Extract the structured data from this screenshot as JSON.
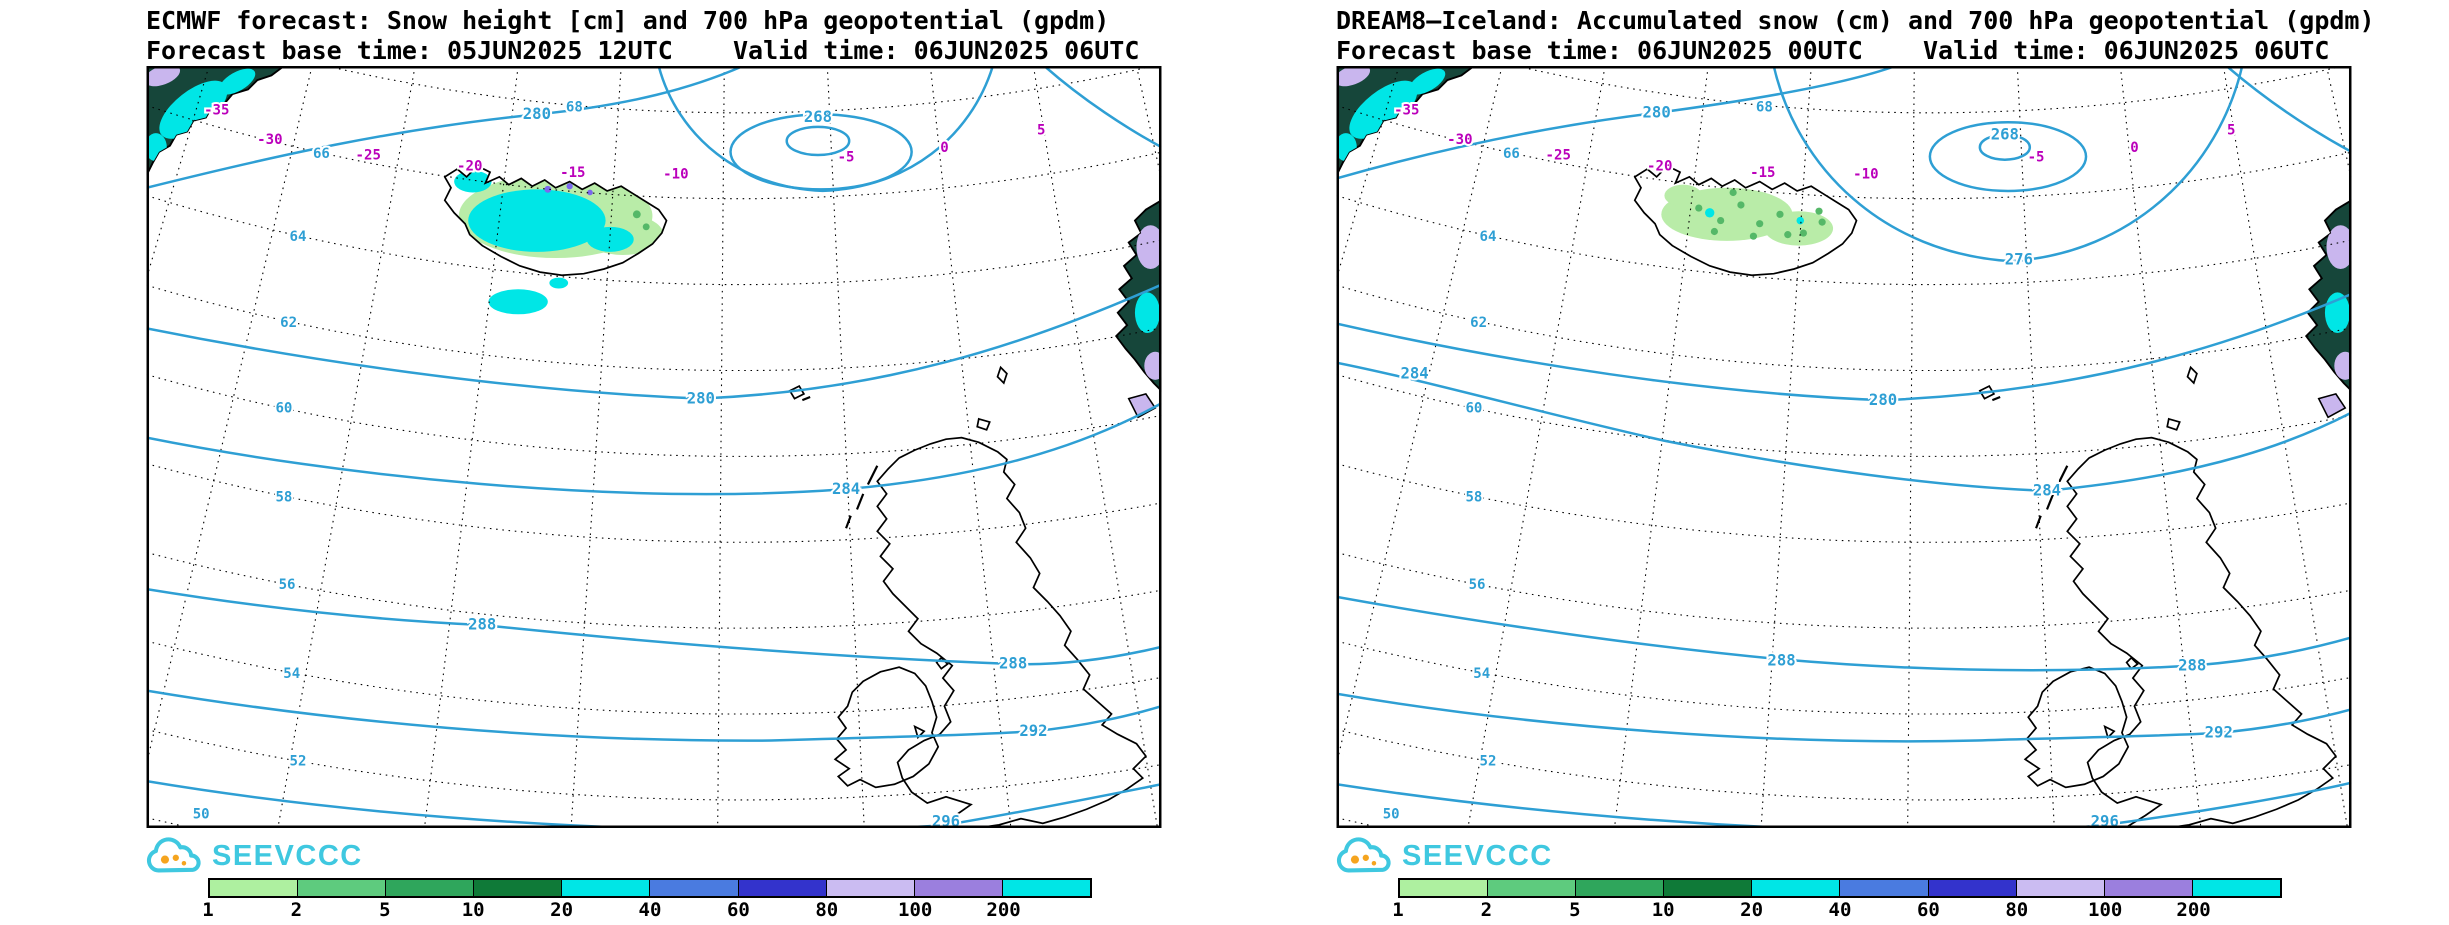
{
  "panels": [
    {
      "id": "ecmwf",
      "title": "ECMWF forecast: Snow height [cm] and 700 hPa geopotential (gpdm)",
      "base_time_line": "Forecast base time: 05JUN2025 12UTC    Valid time: 06JUN2025 06UTC",
      "contour_values": [
        "268",
        "280",
        "280",
        "284",
        "288",
        "288",
        "292",
        "296"
      ]
    },
    {
      "id": "dream8",
      "title": "DREAM8–Iceland: Accumulated snow (cm) and 700 hPa geopotential (gpdm)",
      "base_time_line": "Forecast base time: 06JUN2025 00UTC    Valid time: 06JUN2025 06UTC",
      "contour_values": [
        "268",
        "276",
        "280",
        "280",
        "284",
        "284",
        "288",
        "288",
        "292",
        "296"
      ]
    }
  ],
  "map_labels": {
    "latitudes": [
      "68",
      "66",
      "64",
      "62",
      "60",
      "58",
      "56",
      "54",
      "52",
      "50"
    ],
    "longitudes": [
      "-35",
      "-30",
      "-25",
      "-20",
      "-15",
      "-10",
      "-5",
      "0",
      "5"
    ]
  },
  "logo": {
    "text": "SEEVCCC"
  },
  "colorbar": {
    "ticks": [
      "1",
      "2",
      "5",
      "10",
      "20",
      "40",
      "60",
      "80",
      "100",
      "200"
    ],
    "colors": [
      "#AEF0A0",
      "#5ECB7E",
      "#2FA65C",
      "#0F7A38",
      "#00E6E6",
      "#4A7BE0",
      "#3333CC",
      "#CBBCF2",
      "#9B7FDE",
      "#00E6E6"
    ]
  },
  "colors": {
    "contour": "#2E9FD4",
    "magenta": "#BB00BB",
    "snow_cyan": "#00E6E6",
    "snow_green_light": "#B9ECA8",
    "snow_green_dot": "#55B868",
    "snow_violet": "#7B68EE",
    "land_dark": "#16463A",
    "patch_purple": "#C9B6EE",
    "logo_cyan": "#3FC8E0",
    "logo_orange": "#F5A41E"
  }
}
